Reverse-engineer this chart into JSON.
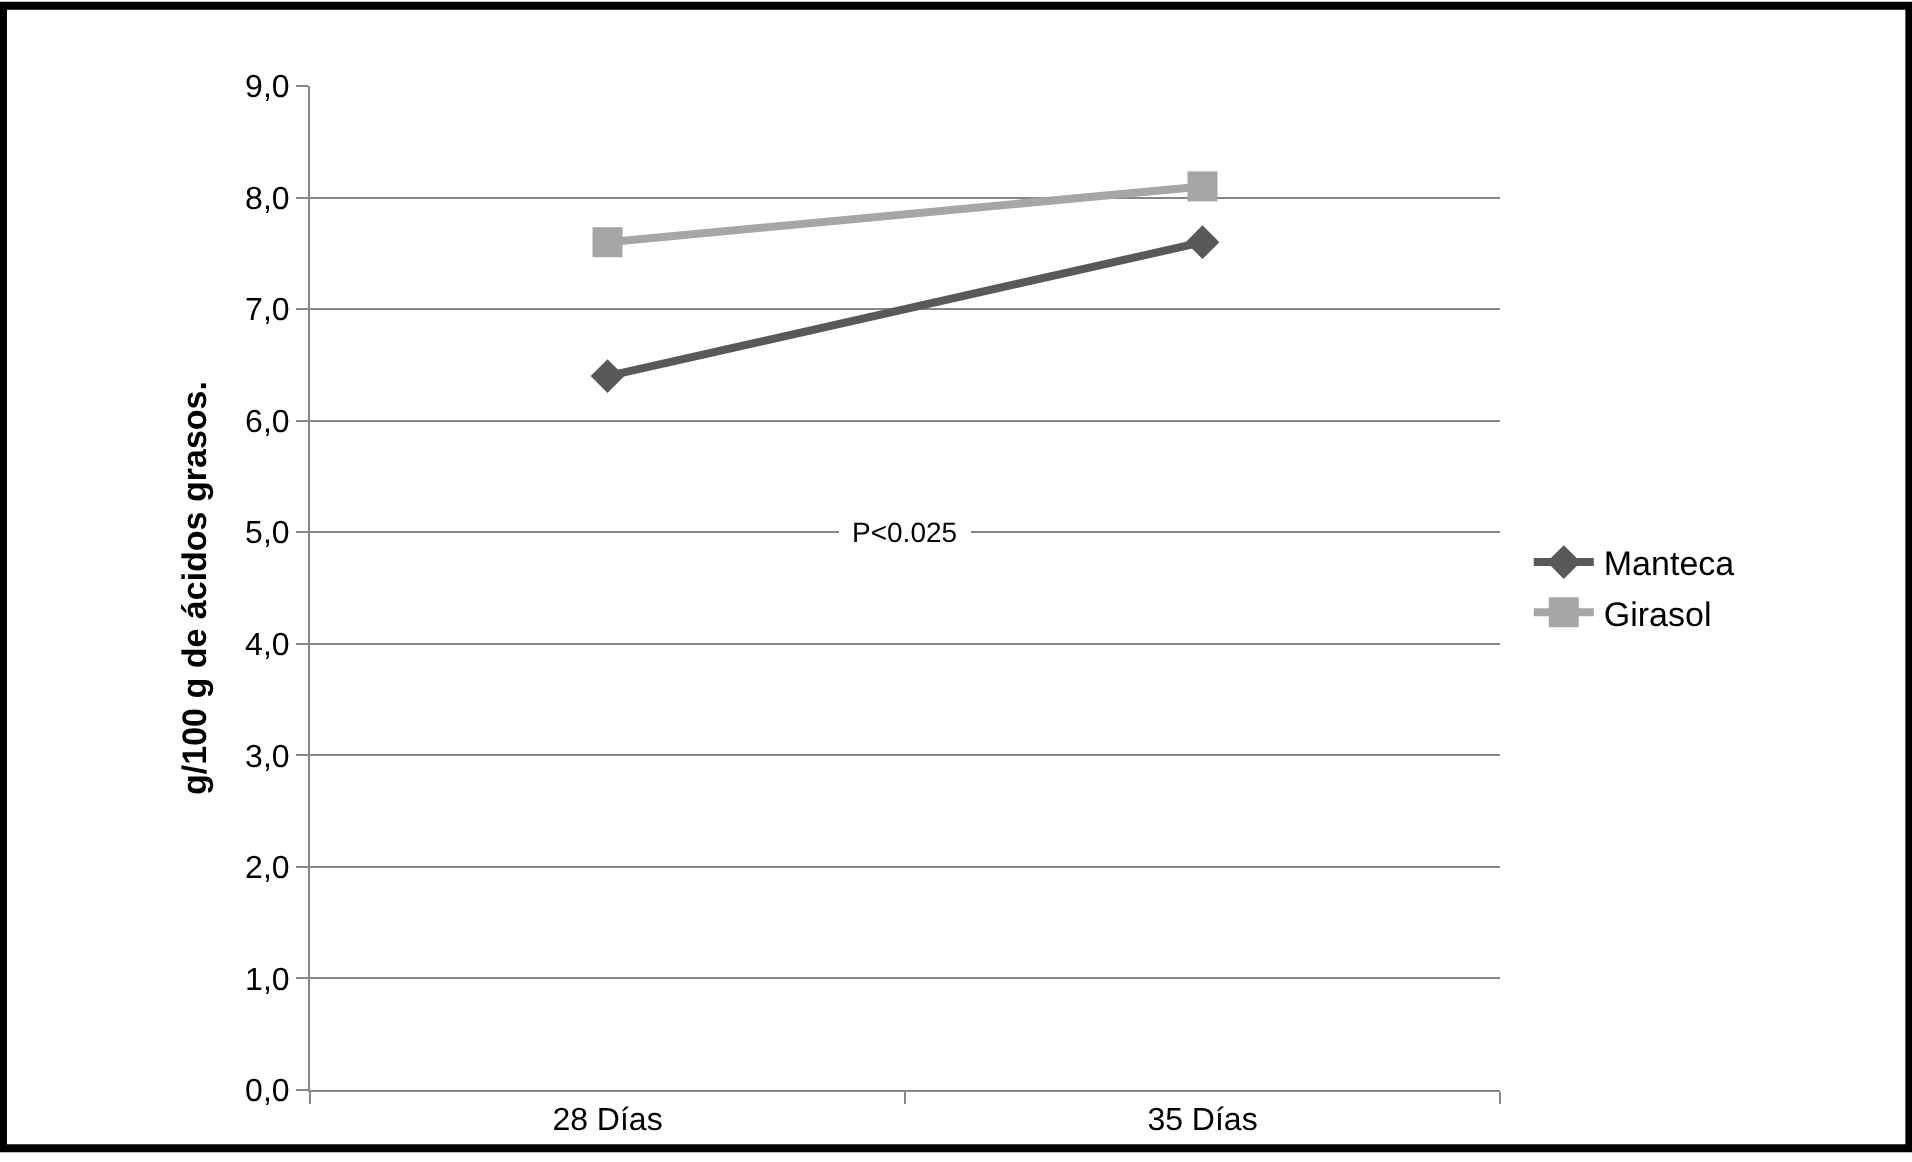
{
  "chart_data": {
    "type": "line",
    "ylabel": "g/100 g de ácidos grasos.",
    "categories": [
      "28 Días",
      "35 Días"
    ],
    "series": [
      {
        "name": "Manteca",
        "color": "#595959",
        "values": [
          6.4,
          7.6
        ],
        "marker": "diamond"
      },
      {
        "name": "Girasol",
        "color": "#a6a6a6",
        "values": [
          7.6,
          8.1
        ],
        "marker": "square"
      }
    ],
    "ylim": [
      0,
      9
    ],
    "yticks": [
      {
        "value": 0,
        "label": "0,0"
      },
      {
        "value": 1,
        "label": "1,0"
      },
      {
        "value": 2,
        "label": "2,0"
      },
      {
        "value": 3,
        "label": "3,0"
      },
      {
        "value": 4,
        "label": "4,0"
      },
      {
        "value": 5,
        "label": "5,0"
      },
      {
        "value": 6,
        "label": "6,0"
      },
      {
        "value": 7,
        "label": "7,0"
      },
      {
        "value": 8,
        "label": "8,0"
      },
      {
        "value": 9,
        "label": "9,0"
      }
    ],
    "grid": "y",
    "legend": "right",
    "line_style": "solid",
    "annotations": [
      "P<0.025"
    ]
  }
}
